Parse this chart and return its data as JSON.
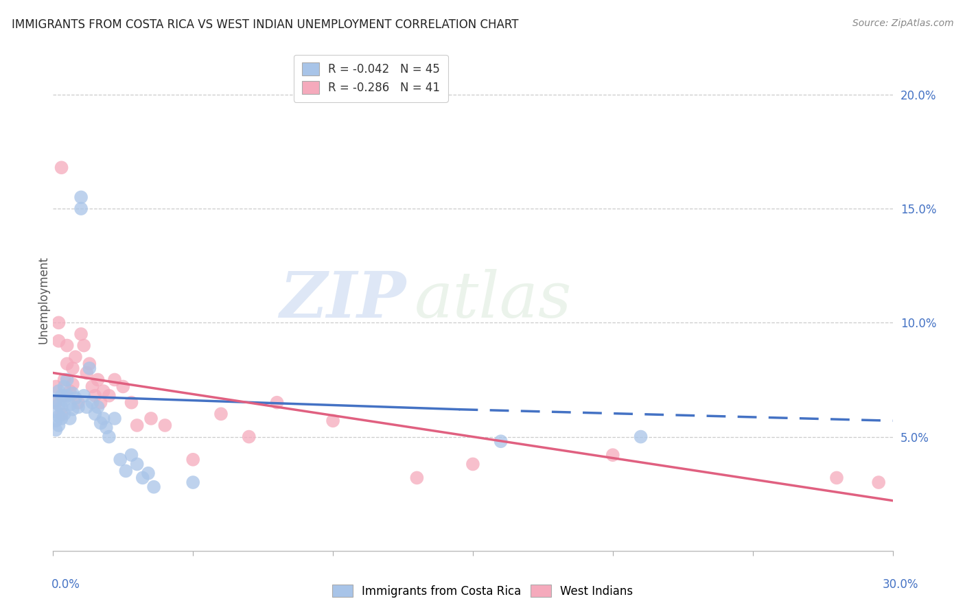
{
  "title": "IMMIGRANTS FROM COSTA RICA VS WEST INDIAN UNEMPLOYMENT CORRELATION CHART",
  "source": "Source: ZipAtlas.com",
  "ylabel": "Unemployment",
  "right_yticks": [
    "20.0%",
    "15.0%",
    "10.0%",
    "5.0%"
  ],
  "right_ytick_vals": [
    0.2,
    0.15,
    0.1,
    0.05
  ],
  "color_blue": "#a8c4e8",
  "color_pink": "#f5aabc",
  "color_blue_line": "#4472c4",
  "color_pink_line": "#e06080",
  "watermark_zip": "ZIP",
  "watermark_atlas": "atlas",
  "xlim": [
    0.0,
    0.3
  ],
  "ylim": [
    0.0,
    0.22
  ],
  "blue_scatter_x": [
    0.001,
    0.001,
    0.001,
    0.001,
    0.002,
    0.002,
    0.002,
    0.002,
    0.003,
    0.003,
    0.003,
    0.004,
    0.004,
    0.004,
    0.005,
    0.005,
    0.006,
    0.006,
    0.007,
    0.007,
    0.008,
    0.009,
    0.01,
    0.01,
    0.011,
    0.012,
    0.013,
    0.014,
    0.015,
    0.016,
    0.017,
    0.018,
    0.019,
    0.02,
    0.022,
    0.024,
    0.026,
    0.028,
    0.03,
    0.032,
    0.034,
    0.036,
    0.05,
    0.16,
    0.21
  ],
  "blue_scatter_y": [
    0.066,
    0.061,
    0.057,
    0.053,
    0.07,
    0.064,
    0.059,
    0.055,
    0.068,
    0.063,
    0.058,
    0.072,
    0.066,
    0.06,
    0.075,
    0.068,
    0.064,
    0.058,
    0.069,
    0.062,
    0.067,
    0.063,
    0.155,
    0.15,
    0.068,
    0.063,
    0.08,
    0.065,
    0.06,
    0.063,
    0.056,
    0.058,
    0.054,
    0.05,
    0.058,
    0.04,
    0.035,
    0.042,
    0.038,
    0.032,
    0.034,
    0.028,
    0.03,
    0.048,
    0.05
  ],
  "pink_scatter_x": [
    0.001,
    0.001,
    0.002,
    0.002,
    0.003,
    0.003,
    0.004,
    0.004,
    0.005,
    0.005,
    0.006,
    0.007,
    0.007,
    0.008,
    0.009,
    0.01,
    0.011,
    0.012,
    0.013,
    0.014,
    0.015,
    0.016,
    0.017,
    0.018,
    0.02,
    0.022,
    0.025,
    0.028,
    0.03,
    0.035,
    0.04,
    0.05,
    0.06,
    0.07,
    0.08,
    0.1,
    0.13,
    0.15,
    0.2,
    0.28,
    0.295
  ],
  "pink_scatter_y": [
    0.072,
    0.065,
    0.1,
    0.092,
    0.168,
    0.06,
    0.075,
    0.068,
    0.09,
    0.082,
    0.07,
    0.08,
    0.073,
    0.085,
    0.065,
    0.095,
    0.09,
    0.078,
    0.082,
    0.072,
    0.068,
    0.075,
    0.065,
    0.07,
    0.068,
    0.075,
    0.072,
    0.065,
    0.055,
    0.058,
    0.055,
    0.04,
    0.06,
    0.05,
    0.065,
    0.057,
    0.032,
    0.038,
    0.042,
    0.032,
    0.03
  ],
  "blue_line_x": [
    0.0,
    0.145,
    0.3
  ],
  "blue_line_y": [
    0.068,
    0.062,
    0.057
  ],
  "blue_line_solid_end": 0.145,
  "pink_line_x": [
    0.0,
    0.3
  ],
  "pink_line_y": [
    0.078,
    0.022
  ]
}
